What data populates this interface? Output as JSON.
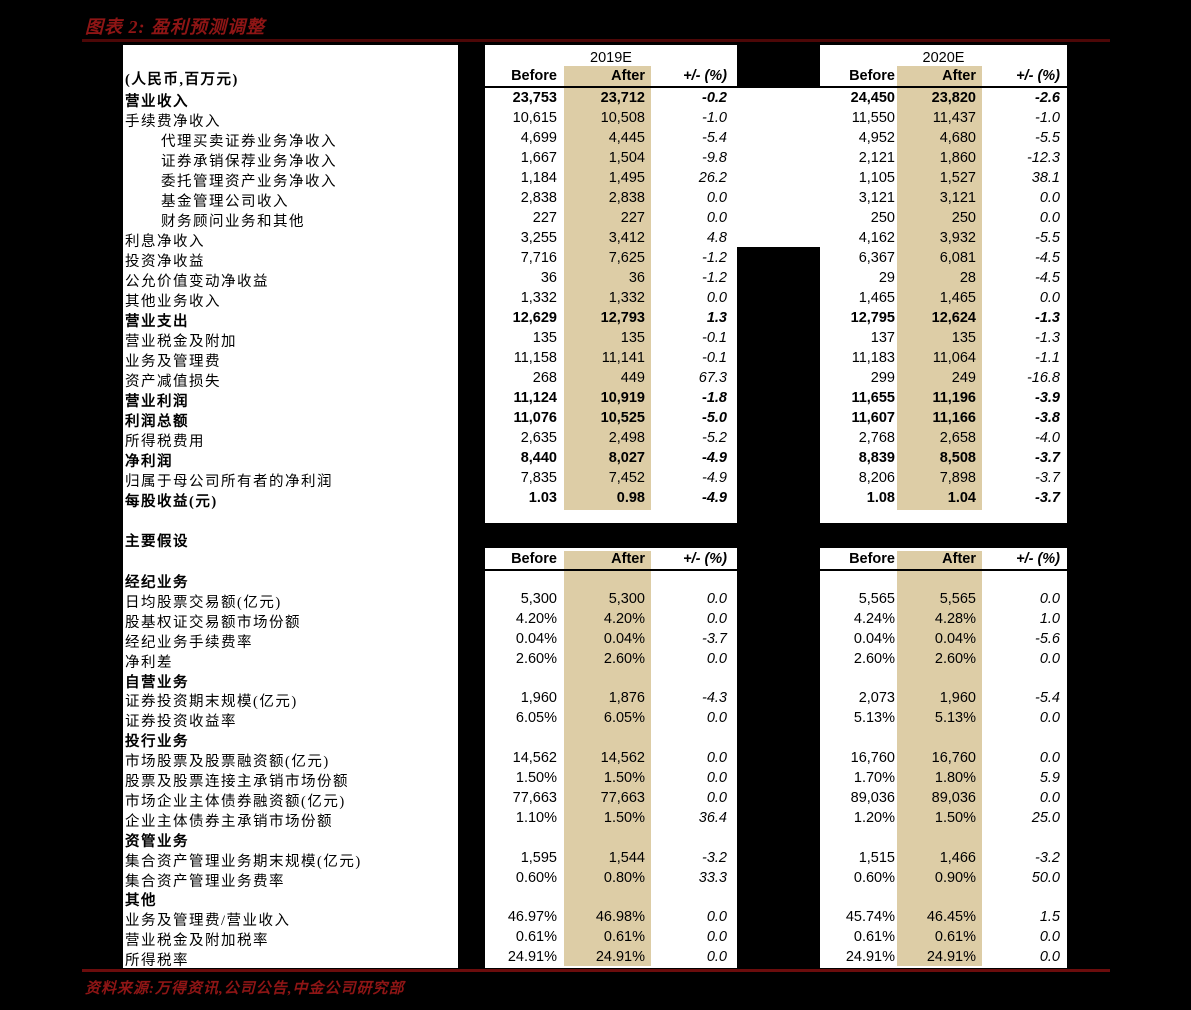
{
  "title": "图表 2: 盈利预测调整",
  "source": "资料来源:万得资讯,公司公告,中金公司研究部",
  "unit_label": "(人民币,百万元)",
  "assumptions_label": "主要假设",
  "col_groups": [
    "2019E",
    "2020E"
  ],
  "col_headers": {
    "before": "Before",
    "after": "After",
    "change": "+/- (%)"
  },
  "colors": {
    "red": "#8e1515",
    "dark_red": "#4d0707",
    "line_red": "#6b0c0c",
    "beige": "#ddcda6"
  },
  "income_rows": [
    {
      "label": "营业收入",
      "bold": true,
      "indent": false,
      "values": [
        "23,753",
        "23,712",
        "-0.2",
        "24,450",
        "23,820",
        "-2.6"
      ]
    },
    {
      "label": "手续费净收入",
      "bold": false,
      "indent": false,
      "values": [
        "10,615",
        "10,508",
        "-1.0",
        "11,550",
        "11,437",
        "-1.0"
      ]
    },
    {
      "label": "代理买卖证券业务净收入",
      "bold": false,
      "indent": true,
      "values": [
        "4,699",
        "4,445",
        "-5.4",
        "4,952",
        "4,680",
        "-5.5"
      ]
    },
    {
      "label": "证券承销保荐业务净收入",
      "bold": false,
      "indent": true,
      "values": [
        "1,667",
        "1,504",
        "-9.8",
        "2,121",
        "1,860",
        "-12.3"
      ]
    },
    {
      "label": "委托管理资产业务净收入",
      "bold": false,
      "indent": true,
      "values": [
        "1,184",
        "1,495",
        "26.2",
        "1,105",
        "1,527",
        "38.1"
      ]
    },
    {
      "label": "基金管理公司收入",
      "bold": false,
      "indent": true,
      "values": [
        "2,838",
        "2,838",
        "0.0",
        "3,121",
        "3,121",
        "0.0"
      ]
    },
    {
      "label": "财务顾问业务和其他",
      "bold": false,
      "indent": true,
      "values": [
        "227",
        "227",
        "0.0",
        "250",
        "250",
        "0.0"
      ]
    },
    {
      "label": "利息净收入",
      "bold": false,
      "indent": false,
      "values": [
        "3,255",
        "3,412",
        "4.8",
        "4,162",
        "3,932",
        "-5.5"
      ]
    },
    {
      "label": "投资净收益",
      "bold": false,
      "indent": false,
      "values": [
        "7,716",
        "7,625",
        "-1.2",
        "6,367",
        "6,081",
        "-4.5"
      ]
    },
    {
      "label": "公允价值变动净收益",
      "bold": false,
      "indent": false,
      "values": [
        "36",
        "36",
        "-1.2",
        "29",
        "28",
        "-4.5"
      ]
    },
    {
      "label": "其他业务收入",
      "bold": false,
      "indent": false,
      "values": [
        "1,332",
        "1,332",
        "0.0",
        "1,465",
        "1,465",
        "0.0"
      ]
    },
    {
      "label": "营业支出",
      "bold": true,
      "indent": false,
      "values": [
        "12,629",
        "12,793",
        "1.3",
        "12,795",
        "12,624",
        "-1.3"
      ]
    },
    {
      "label": "营业税金及附加",
      "bold": false,
      "indent": false,
      "values": [
        "135",
        "135",
        "-0.1",
        "137",
        "135",
        "-1.3"
      ]
    },
    {
      "label": "业务及管理费",
      "bold": false,
      "indent": false,
      "values": [
        "11,158",
        "11,141",
        "-0.1",
        "11,183",
        "11,064",
        "-1.1"
      ]
    },
    {
      "label": "资产减值损失",
      "bold": false,
      "indent": false,
      "values": [
        "268",
        "449",
        "67.3",
        "299",
        "249",
        "-16.8"
      ]
    },
    {
      "label": "营业利润",
      "bold": true,
      "indent": false,
      "values": [
        "11,124",
        "10,919",
        "-1.8",
        "11,655",
        "11,196",
        "-3.9"
      ]
    },
    {
      "label": "利润总额",
      "bold": true,
      "indent": false,
      "values": [
        "11,076",
        "10,525",
        "-5.0",
        "11,607",
        "11,166",
        "-3.8"
      ]
    },
    {
      "label": "所得税费用",
      "bold": false,
      "indent": false,
      "values": [
        "2,635",
        "2,498",
        "-5.2",
        "2,768",
        "2,658",
        "-4.0"
      ]
    },
    {
      "label": "净利润",
      "bold": true,
      "indent": false,
      "values": [
        "8,440",
        "8,027",
        "-4.9",
        "8,839",
        "8,508",
        "-3.7"
      ]
    },
    {
      "label": "归属于母公司所有者的净利润",
      "bold": false,
      "indent": false,
      "values": [
        "7,835",
        "7,452",
        "-4.9",
        "8,206",
        "7,898",
        "-3.7"
      ]
    },
    {
      "label": "每股收益(元)",
      "bold": true,
      "indent": false,
      "values": [
        "1.03",
        "0.98",
        "-4.9",
        "1.08",
        "1.04",
        "-3.7"
      ]
    }
  ],
  "assumption_rows": [
    {
      "label": "经纪业务",
      "bold": true,
      "values": []
    },
    {
      "label": "日均股票交易额(亿元)",
      "bold": false,
      "values": [
        "5,300",
        "5,300",
        "0.0",
        "5,565",
        "5,565",
        "0.0"
      ]
    },
    {
      "label": "股基权证交易额市场份额",
      "bold": false,
      "values": [
        "4.20%",
        "4.20%",
        "0.0",
        "4.24%",
        "4.28%",
        "1.0"
      ]
    },
    {
      "label": "经纪业务手续费率",
      "bold": false,
      "values": [
        "0.04%",
        "0.04%",
        "-3.7",
        "0.04%",
        "0.04%",
        "-5.6"
      ]
    },
    {
      "label": "净利差",
      "bold": false,
      "values": [
        "2.60%",
        "2.60%",
        "0.0",
        "2.60%",
        "2.60%",
        "0.0"
      ]
    },
    {
      "label": "自营业务",
      "bold": true,
      "values": []
    },
    {
      "label": "证券投资期末规模(亿元)",
      "bold": false,
      "values": [
        "1,960",
        "1,876",
        "-4.3",
        "2,073",
        "1,960",
        "-5.4"
      ]
    },
    {
      "label": "证券投资收益率",
      "bold": false,
      "values": [
        "6.05%",
        "6.05%",
        "0.0",
        "5.13%",
        "5.13%",
        "0.0"
      ]
    },
    {
      "label": "投行业务",
      "bold": true,
      "values": []
    },
    {
      "label": "市场股票及股票融资额(亿元)",
      "bold": false,
      "values": [
        "14,562",
        "14,562",
        "0.0",
        "16,760",
        "16,760",
        "0.0"
      ]
    },
    {
      "label": "股票及股票连接主承销市场份额",
      "bold": false,
      "values": [
        "1.50%",
        "1.50%",
        "0.0",
        "1.70%",
        "1.80%",
        "5.9"
      ]
    },
    {
      "label": "市场企业主体债券融资额(亿元)",
      "bold": false,
      "values": [
        "77,663",
        "77,663",
        "0.0",
        "89,036",
        "89,036",
        "0.0"
      ]
    },
    {
      "label": "企业主体债券主承销市场份额",
      "bold": false,
      "values": [
        "1.10%",
        "1.50%",
        "36.4",
        "1.20%",
        "1.50%",
        "25.0"
      ]
    },
    {
      "label": "资管业务",
      "bold": true,
      "values": []
    },
    {
      "label": "集合资产管理业务期末规模(亿元)",
      "bold": false,
      "values": [
        "1,595",
        "1,544",
        "-3.2",
        "1,515",
        "1,466",
        "-3.2"
      ]
    },
    {
      "label": "集合资产管理业务费率",
      "bold": false,
      "values": [
        "0.60%",
        "0.80%",
        "33.3",
        "0.60%",
        "0.90%",
        "50.0"
      ]
    },
    {
      "label": "其他",
      "bold": true,
      "values": []
    },
    {
      "label": "业务及管理费/营业收入",
      "bold": false,
      "values": [
        "46.97%",
        "46.98%",
        "0.0",
        "45.74%",
        "46.45%",
        "1.5"
      ]
    },
    {
      "label": "营业税金及附加税率",
      "bold": false,
      "values": [
        "0.61%",
        "0.61%",
        "0.0",
        "0.61%",
        "0.61%",
        "0.0"
      ]
    },
    {
      "label": "所得税率",
      "bold": false,
      "values": [
        "24.91%",
        "24.91%",
        "0.0",
        "24.91%",
        "24.91%",
        "0.0"
      ]
    }
  ]
}
